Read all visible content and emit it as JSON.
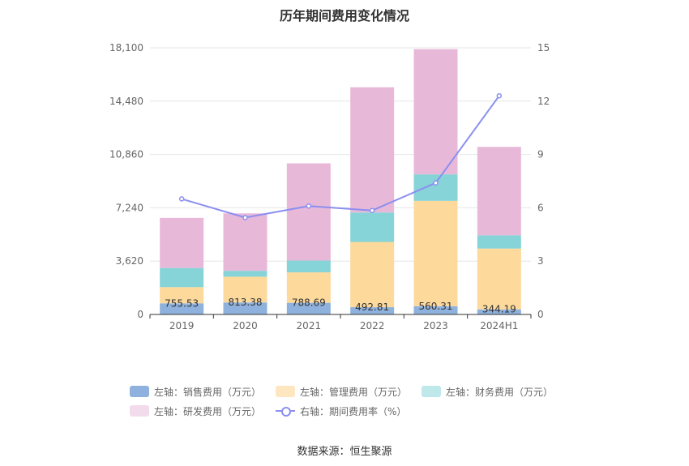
{
  "title": "历年期间费用变化情况",
  "source": "数据来源：恒生聚源",
  "chart_data": {
    "type": "bar",
    "stacked": true,
    "categories": [
      "2019",
      "2020",
      "2021",
      "2022",
      "2023",
      "2024H1"
    ],
    "y_left": {
      "ylim": [
        0,
        18100
      ],
      "ticks": [
        "0",
        "3,620",
        "7,240",
        "10,860",
        "14,480",
        "18,100"
      ]
    },
    "y_right": {
      "ylim": [
        0,
        15
      ],
      "ticks": [
        "0",
        "3",
        "6",
        "9",
        "12",
        "15"
      ]
    },
    "series": [
      {
        "name": "左轴：销售费用（万元）",
        "color": "#8eb1dd",
        "values": [
          755.53,
          813.38,
          788.69,
          492.81,
          560.31,
          344.19
        ],
        "labels": [
          "755.53",
          "813.38",
          "788.69",
          "492.81",
          "560.31",
          "344.19"
        ]
      },
      {
        "name": "左轴：管理费用（万元）",
        "color": "#fdd99b",
        "values": [
          1100,
          1750,
          2070,
          4430,
          7150,
          4130
        ]
      },
      {
        "name": "左轴：财务费用（万元）",
        "color": "#86d4d8",
        "values": [
          1300,
          400,
          800,
          2000,
          1800,
          900
        ]
      },
      {
        "name": "左轴：研发费用（万元）",
        "color": "#e8b8d9",
        "values": [
          3400,
          3900,
          6600,
          8500,
          8500,
          6000
        ]
      }
    ],
    "line": {
      "name": "右轴：期间费用率（%）",
      "color": "#8b8ff0",
      "axis": "right",
      "values": [
        6.5,
        5.45,
        6.1,
        5.85,
        7.4,
        12.3
      ]
    },
    "legend_position": "bottom",
    "grid": true
  }
}
